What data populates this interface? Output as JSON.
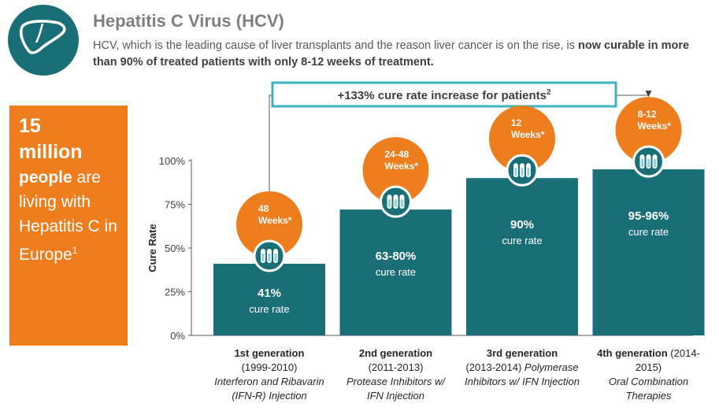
{
  "header": {
    "title": "Hepatitis C Virus (HCV)",
    "subtitle_plain": "HCV, which is the leading cause of liver transplants and the reason liver cancer is on the rise, is ",
    "subtitle_bold": "now curable in more than 90% of treated patients with only 8-12 weeks of treatment."
  },
  "icons": {
    "badge": "liver-icon",
    "bar_badge": "injection-vials-icon"
  },
  "colors": {
    "bar": "#1a6f77",
    "orange": "#ee7d1d",
    "teal_border": "#3fb3c2"
  },
  "stat_box": {
    "number": "15",
    "unit": "million",
    "word": "people",
    "text": "are living with Hepatitis C in Europe",
    "footnote": "1"
  },
  "chart_data": {
    "type": "bar",
    "ylabel": "Cure Rate",
    "ylim": [
      0,
      100
    ],
    "yticks": [
      "0%",
      "25%",
      "50%",
      "75%",
      "100%"
    ],
    "categories": [
      "1st generation",
      "2nd generation",
      "3rd generation",
      "4th generation"
    ],
    "values": [
      41,
      72,
      90,
      95
    ],
    "value_labels": [
      "41%",
      "63-80%",
      "90%",
      "95-96%"
    ],
    "value_sublabel": "cure rate",
    "durations": [
      {
        "line1": "48",
        "line2": "Weeks*"
      },
      {
        "line1": "24-48",
        "line2": "Weeks*"
      },
      {
        "line1": "12",
        "line2": "Weeks*"
      },
      {
        "line1": "8-12",
        "line2": "Weeks*"
      }
    ],
    "category_details": [
      {
        "title": "1st generation",
        "title_suffix": "",
        "line2": "(1999-2010)",
        "line3": "Interferon and Ribavarin",
        "line4": "(IFN-R) Injection"
      },
      {
        "title": "2nd generation",
        "title_suffix": "",
        "line2": "(2011-2013)",
        "line3": "Protease Inhibitors w/",
        "line4": "IFN Injection"
      },
      {
        "title": "3rd generation",
        "title_suffix": "",
        "line2": "(2013-2014)",
        "line2_italic": " Polymerase",
        "line3": "Inhibitors w/ IFN Injection",
        "line4": ""
      },
      {
        "title": "4th generation",
        "title_suffix": " (2014-",
        "line2": "2015)",
        "line3": "Oral Combination",
        "line4": "Therapies"
      }
    ],
    "annotation": {
      "text": "+133% cure rate increase for patients",
      "footnote": "2"
    }
  }
}
